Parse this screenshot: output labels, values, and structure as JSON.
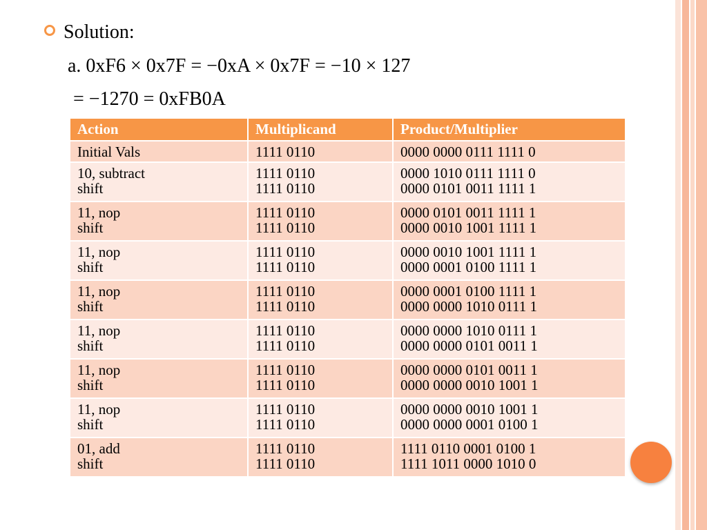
{
  "bullet": "Solution:",
  "lines": [
    "a. 0xF6 × 0x7F = −0xA × 0x7F = −10 × 127",
    "= −1270 = 0xFB0A"
  ],
  "table": {
    "header": [
      "Action",
      "Multiplicand",
      "Product/Multiplier"
    ],
    "rows": [
      [
        [
          "Initial Vals"
        ],
        [
          "1111 0110"
        ],
        [
          "0000 0000 0111 1111 0"
        ]
      ],
      [
        [
          "10, subtract",
          "shift"
        ],
        [
          "1111 0110",
          "1111 0110"
        ],
        [
          "0000 1010 0111 1111 0",
          "0000 0101 0011 1111 1"
        ]
      ],
      [
        [
          "11, nop",
          "shift"
        ],
        [
          "1111 0110",
          "1111 0110"
        ],
        [
          "0000 0101 0011 1111 1",
          "0000 0010 1001 1111 1"
        ]
      ],
      [
        [
          "11, nop",
          "shift"
        ],
        [
          "1111 0110",
          "1111 0110"
        ],
        [
          "0000 0010 1001 1111 1",
          "0000 0001 0100 1111 1"
        ]
      ],
      [
        [
          "11, nop",
          "shift"
        ],
        [
          "1111 0110",
          "1111 0110"
        ],
        [
          "0000 0001 0100 1111 1",
          "0000 0000 1010 0111 1"
        ]
      ],
      [
        [
          "11, nop",
          "shift"
        ],
        [
          "1111 0110",
          "1111 0110"
        ],
        [
          "0000 0000 1010 0111 1",
          "0000 0000 0101 0011 1"
        ]
      ],
      [
        [
          "11, nop",
          "shift"
        ],
        [
          "1111 0110",
          "1111 0110"
        ],
        [
          "0000 0000 0101 0011 1",
          "0000 0000 0010 1001 1"
        ]
      ],
      [
        [
          "11, nop",
          "shift"
        ],
        [
          "1111 0110",
          "1111 0110"
        ],
        [
          "0000 0000 0010 1001 1",
          "0000 0000 0001 0100 1"
        ]
      ],
      [
        [
          "01, add",
          "shift"
        ],
        [
          "1111 0110",
          "1111 0110"
        ],
        [
          "1111 0110 0001 0100 1",
          "1111 1011 0000 1010 0"
        ]
      ]
    ]
  }
}
